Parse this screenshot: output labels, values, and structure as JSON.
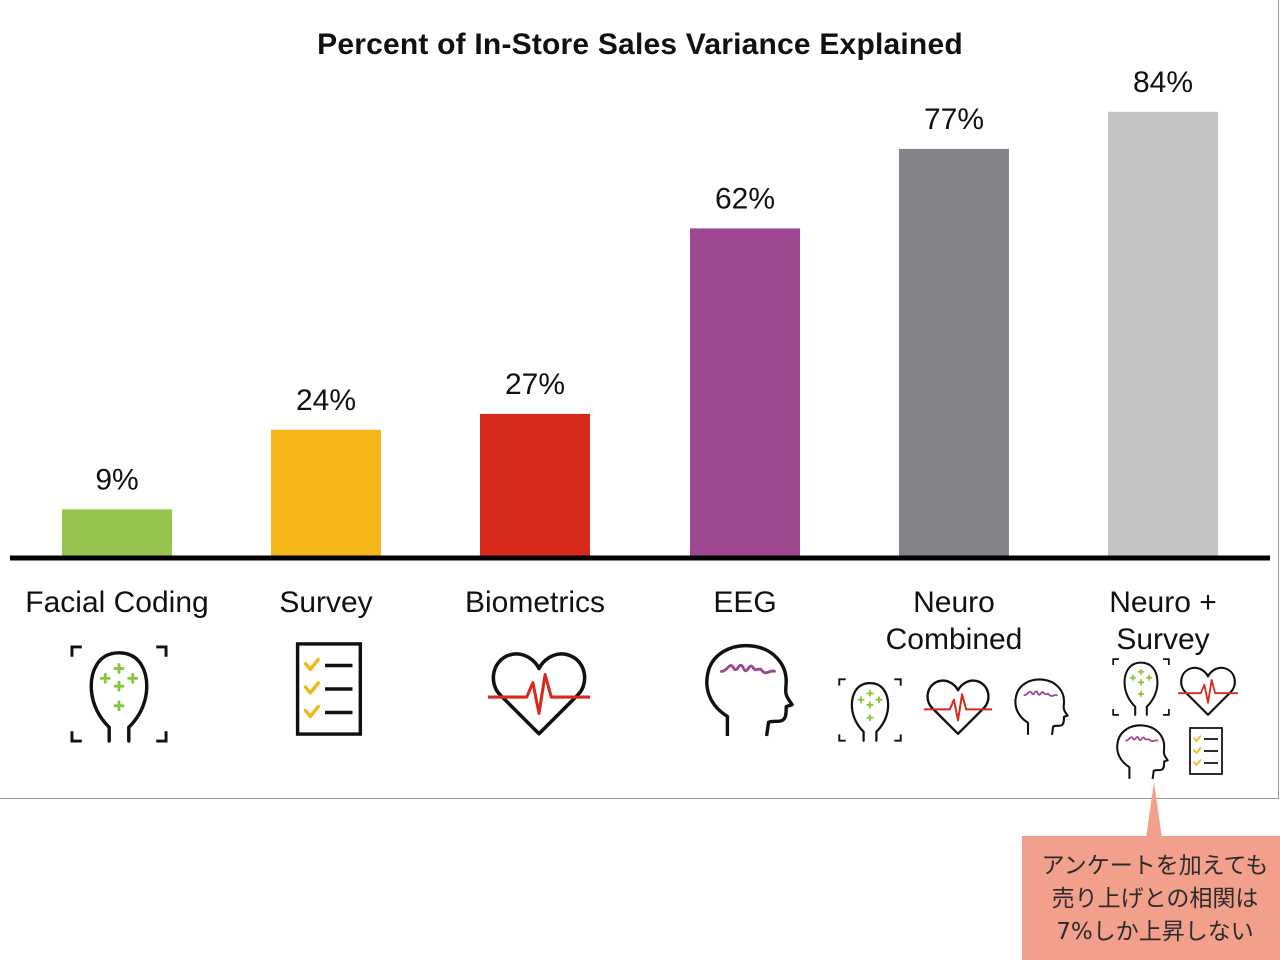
{
  "chart_data": {
    "type": "bar",
    "title": "Percent of In-Store Sales Variance Explained",
    "categories": [
      "Facial Coding",
      "Survey",
      "Biometrics",
      "EEG",
      "Neuro Combined",
      "Neuro + Survey"
    ],
    "category_lines": [
      [
        "Facial Coding"
      ],
      [
        "Survey"
      ],
      [
        "Biometrics"
      ],
      [
        "EEG"
      ],
      [
        "Neuro",
        "Combined"
      ],
      [
        "Neuro +",
        "Survey"
      ]
    ],
    "values": [
      9,
      24,
      27,
      62,
      77,
      84
    ],
    "value_labels": [
      "9%",
      "24%",
      "27%",
      "62%",
      "77%",
      "84%"
    ],
    "colors": [
      "#98c54f",
      "#f5b61a",
      "#d8291d",
      "#9d4891",
      "#838487",
      "#c3c3c4"
    ],
    "ylim": [
      0,
      100
    ],
    "grid": false,
    "legend": "none",
    "category_icons": [
      [
        "face-scan-icon"
      ],
      [
        "checklist-icon"
      ],
      [
        "heart-pulse-icon"
      ],
      [
        "brain-wave-head-icon"
      ],
      [
        "face-scan-icon",
        "heart-pulse-icon",
        "brain-wave-head-icon"
      ],
      [
        "face-scan-icon",
        "heart-pulse-icon",
        "brain-wave-head-icon",
        "checklist-icon"
      ]
    ]
  },
  "annotation": {
    "lines": [
      "アンケートを加えても",
      "売り上げとの相関は",
      "7%しか上昇しない"
    ],
    "color": "#f2a08c"
  }
}
